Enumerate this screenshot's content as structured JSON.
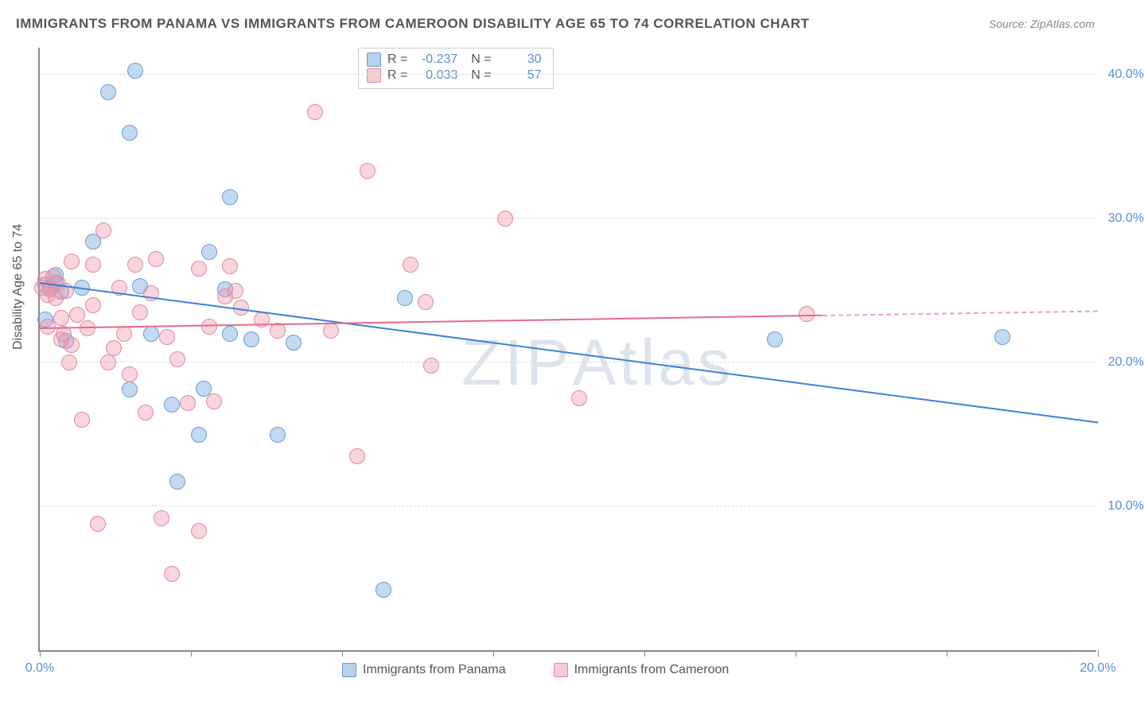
{
  "title": "IMMIGRANTS FROM PANAMA VS IMMIGRANTS FROM CAMEROON DISABILITY AGE 65 TO 74 CORRELATION CHART",
  "source": "Source: ZipAtlas.com",
  "ylabel": "Disability Age 65 to 74",
  "watermark": "ZIPAtlas",
  "chart": {
    "type": "scatter",
    "xlim": [
      0,
      20
    ],
    "ylim": [
      0,
      42
    ],
    "ytick_values": [
      10,
      20,
      30,
      40
    ],
    "ytick_labels": [
      "10.0%",
      "20.0%",
      "30.0%",
      "40.0%"
    ],
    "xtick_values": [
      0,
      2.86,
      5.71,
      8.57,
      11.43,
      14.29,
      17.14,
      20
    ],
    "xtick_labels": {
      "0": "0.0%",
      "20": "20.0%"
    },
    "grid_color": "#dddddd",
    "axis_color": "#888888",
    "background": "#ffffff",
    "marker_size": 20,
    "series": [
      {
        "name": "Immigrants from Panama",
        "color_fill": "rgba(122,172,224,0.45)",
        "color_stroke": "#6a9cd4",
        "reg_color": "#3b82d6",
        "R": "-0.237",
        "N": "30",
        "reg_line": {
          "x1": 0,
          "y1": 25.5,
          "x2": 20,
          "y2": 15.8
        },
        "points": [
          [
            0.1,
            25.4
          ],
          [
            0.2,
            25.2
          ],
          [
            0.3,
            25.6
          ],
          [
            0.4,
            24.9
          ],
          [
            0.1,
            23.0
          ],
          [
            0.3,
            26.1
          ],
          [
            0.8,
            25.2
          ],
          [
            1.0,
            28.4
          ],
          [
            1.3,
            38.8
          ],
          [
            1.7,
            18.1
          ],
          [
            1.7,
            36.0
          ],
          [
            1.8,
            40.3
          ],
          [
            1.9,
            25.3
          ],
          [
            2.1,
            22.0
          ],
          [
            2.5,
            17.1
          ],
          [
            2.6,
            11.7
          ],
          [
            3.0,
            15.0
          ],
          [
            3.1,
            18.2
          ],
          [
            3.2,
            27.7
          ],
          [
            3.5,
            25.1
          ],
          [
            3.6,
            31.5
          ],
          [
            3.6,
            22.0
          ],
          [
            4.0,
            21.6
          ],
          [
            4.5,
            15.0
          ],
          [
            6.5,
            4.2
          ],
          [
            6.9,
            24.5
          ],
          [
            4.8,
            21.4
          ],
          [
            13.9,
            21.6
          ],
          [
            18.2,
            21.8
          ],
          [
            0.5,
            21.5
          ]
        ]
      },
      {
        "name": "Immigrants from Cameroon",
        "color_fill": "rgba(240,150,170,0.4)",
        "color_stroke": "#e08aa0",
        "reg_color": "#e86a8a",
        "R": "0.033",
        "N": "57",
        "reg_line_solid": {
          "x1": 0,
          "y1": 22.3,
          "x2": 14.8,
          "y2": 23.2
        },
        "reg_line_dash": {
          "x1": 14.8,
          "y1": 23.2,
          "x2": 20,
          "y2": 23.5
        },
        "points": [
          [
            0.05,
            25.2
          ],
          [
            0.1,
            25.8
          ],
          [
            0.15,
            24.7
          ],
          [
            0.2,
            25.1
          ],
          [
            0.25,
            26.0
          ],
          [
            0.3,
            24.5
          ],
          [
            0.35,
            25.5
          ],
          [
            0.4,
            23.1
          ],
          [
            0.4,
            21.6
          ],
          [
            0.45,
            22.0
          ],
          [
            0.5,
            25.0
          ],
          [
            0.55,
            20.0
          ],
          [
            0.6,
            21.2
          ],
          [
            0.7,
            23.3
          ],
          [
            0.8,
            16.0
          ],
          [
            0.9,
            22.4
          ],
          [
            1.0,
            24.0
          ],
          [
            1.0,
            26.8
          ],
          [
            1.1,
            8.8
          ],
          [
            1.2,
            29.2
          ],
          [
            1.3,
            20.0
          ],
          [
            1.5,
            25.2
          ],
          [
            1.6,
            22.0
          ],
          [
            1.8,
            26.8
          ],
          [
            1.9,
            23.5
          ],
          [
            2.0,
            16.5
          ],
          [
            2.1,
            24.8
          ],
          [
            2.2,
            27.2
          ],
          [
            2.3,
            9.2
          ],
          [
            2.5,
            5.3
          ],
          [
            2.6,
            20.2
          ],
          [
            2.8,
            17.2
          ],
          [
            3.0,
            26.5
          ],
          [
            3.0,
            8.3
          ],
          [
            3.2,
            22.5
          ],
          [
            3.3,
            17.3
          ],
          [
            3.5,
            24.6
          ],
          [
            3.6,
            26.7
          ],
          [
            3.7,
            25.0
          ],
          [
            3.8,
            23.8
          ],
          [
            4.2,
            23.0
          ],
          [
            4.5,
            22.2
          ],
          [
            5.2,
            37.4
          ],
          [
            5.5,
            22.2
          ],
          [
            6.0,
            13.5
          ],
          [
            6.2,
            33.3
          ],
          [
            7.0,
            26.8
          ],
          [
            7.3,
            24.2
          ],
          [
            7.4,
            19.8
          ],
          [
            8.8,
            30.0
          ],
          [
            10.2,
            17.5
          ],
          [
            14.5,
            23.4
          ],
          [
            0.15,
            22.5
          ],
          [
            0.6,
            27.0
          ],
          [
            1.4,
            21.0
          ],
          [
            1.7,
            19.2
          ],
          [
            2.4,
            21.8
          ]
        ]
      }
    ]
  },
  "legend": {
    "series1": "Immigrants from Panama",
    "series2": "Immigrants from Cameroon"
  }
}
